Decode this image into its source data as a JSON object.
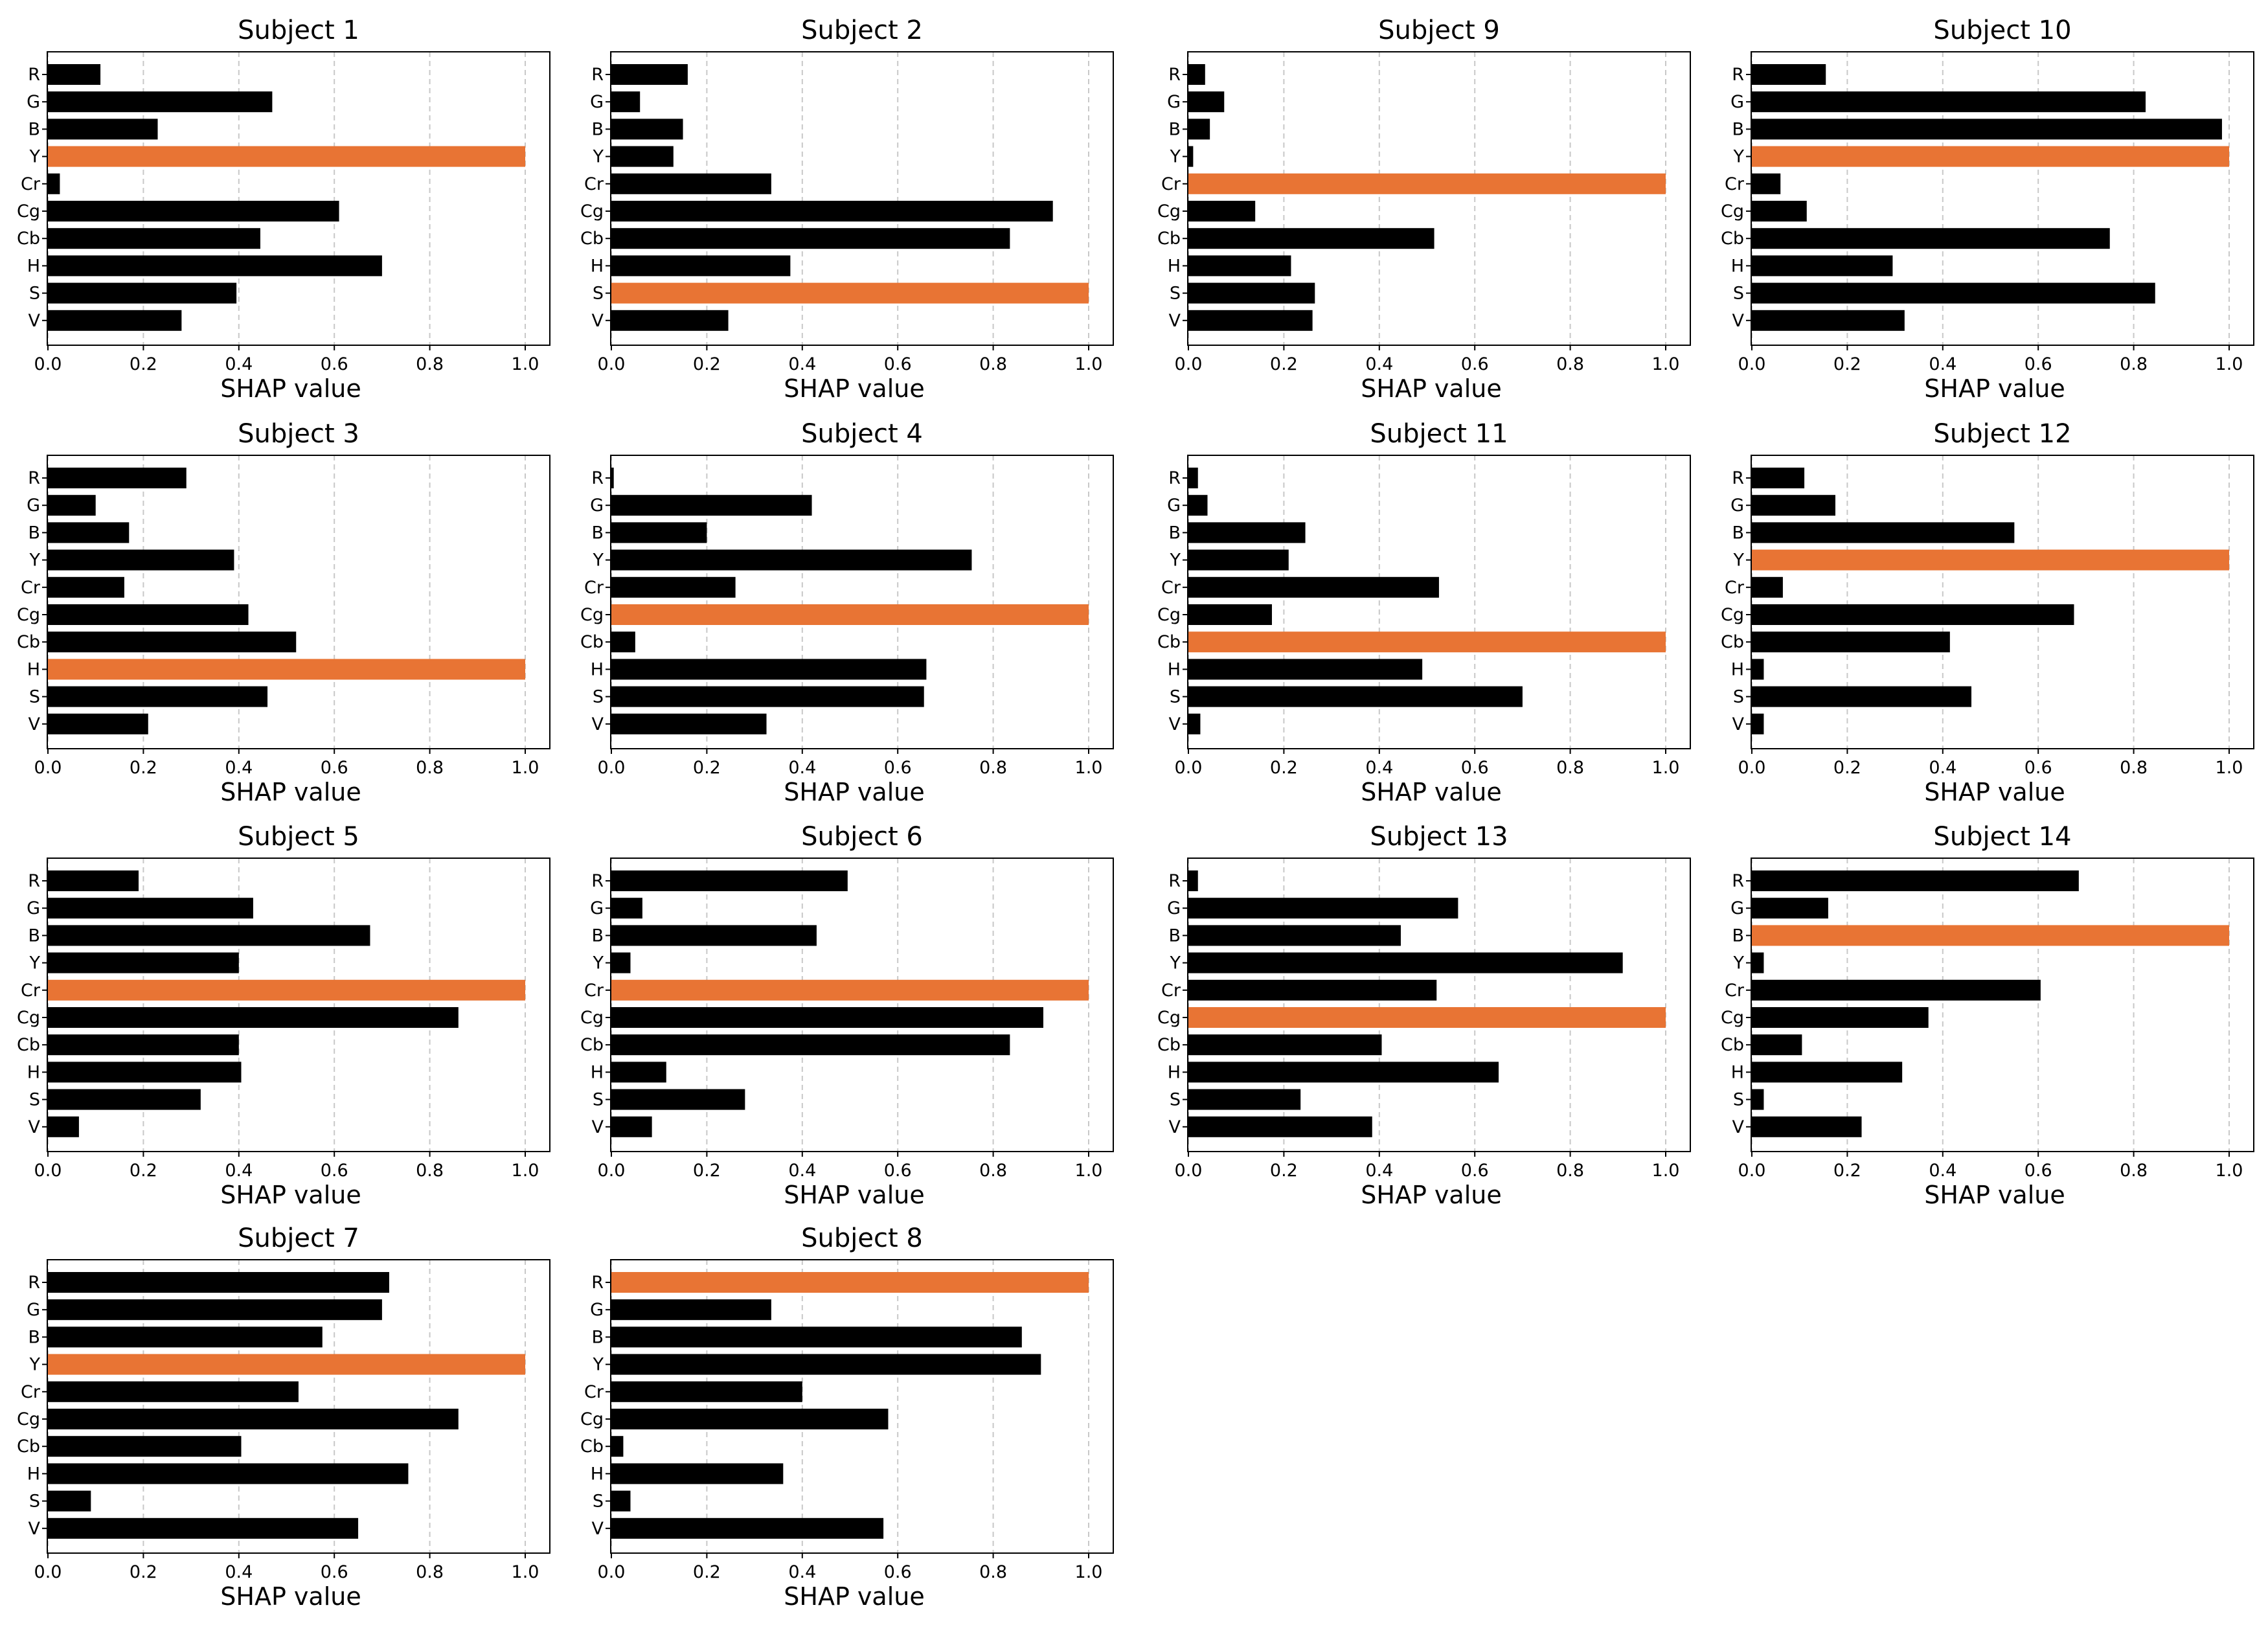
{
  "colors": {
    "bar": "#000000",
    "highlight": "#e87434",
    "grid": "#c8c8c8",
    "axis": "#000000"
  },
  "chart_data": [
    {
      "type": "bar",
      "orientation": "horizontal",
      "title": "Subject 1",
      "xlabel": "SHAP value",
      "categories": [
        "R",
        "G",
        "B",
        "Y",
        "Cr",
        "Cg",
        "Cb",
        "H",
        "S",
        "V"
      ],
      "values": [
        0.11,
        0.47,
        0.23,
        1.0,
        0.025,
        0.61,
        0.445,
        0.7,
        0.395,
        0.28
      ],
      "highlight": "Y",
      "xlim": [
        0,
        1.05
      ],
      "xticks": [
        "0.0",
        "0.2",
        "0.4",
        "0.6",
        "0.8",
        "1.0"
      ],
      "grid": "vertical dashed"
    },
    {
      "type": "bar",
      "orientation": "horizontal",
      "title": "Subject 2",
      "xlabel": "SHAP value",
      "categories": [
        "R",
        "G",
        "B",
        "Y",
        "Cr",
        "Cg",
        "Cb",
        "H",
        "S",
        "V"
      ],
      "values": [
        0.16,
        0.06,
        0.15,
        0.13,
        0.335,
        0.925,
        0.835,
        0.375,
        1.0,
        0.245
      ],
      "highlight": "S",
      "xlim": [
        0,
        1.05
      ],
      "xticks": [
        "0.0",
        "0.2",
        "0.4",
        "0.6",
        "0.8",
        "1.0"
      ],
      "grid": "vertical dashed"
    },
    {
      "type": "bar",
      "orientation": "horizontal",
      "title": "Subject 9",
      "xlabel": "SHAP value",
      "categories": [
        "R",
        "G",
        "B",
        "Y",
        "Cr",
        "Cg",
        "Cb",
        "H",
        "S",
        "V"
      ],
      "values": [
        0.035,
        0.075,
        0.045,
        0.01,
        1.0,
        0.14,
        0.515,
        0.215,
        0.265,
        0.26
      ],
      "highlight": "Cr",
      "xlim": [
        0,
        1.05
      ],
      "xticks": [
        "0.0",
        "0.2",
        "0.4",
        "0.6",
        "0.8",
        "1.0"
      ],
      "grid": "vertical dashed"
    },
    {
      "type": "bar",
      "orientation": "horizontal",
      "title": "Subject 10",
      "xlabel": "SHAP value",
      "categories": [
        "R",
        "G",
        "B",
        "Y",
        "Cr",
        "Cg",
        "Cb",
        "H",
        "S",
        "V"
      ],
      "values": [
        0.155,
        0.825,
        0.985,
        1.0,
        0.06,
        0.115,
        0.75,
        0.295,
        0.845,
        0.32
      ],
      "highlight": "Y",
      "xlim": [
        0,
        1.05
      ],
      "xticks": [
        "0.0",
        "0.2",
        "0.4",
        "0.6",
        "0.8",
        "1.0"
      ],
      "grid": "vertical dashed"
    },
    {
      "type": "bar",
      "orientation": "horizontal",
      "title": "Subject 3",
      "xlabel": "SHAP value",
      "categories": [
        "R",
        "G",
        "B",
        "Y",
        "Cr",
        "Cg",
        "Cb",
        "H",
        "S",
        "V"
      ],
      "values": [
        0.29,
        0.1,
        0.17,
        0.39,
        0.16,
        0.42,
        0.52,
        1.0,
        0.46,
        0.21
      ],
      "highlight": "H",
      "xlim": [
        0,
        1.05
      ],
      "xticks": [
        "0.0",
        "0.2",
        "0.4",
        "0.6",
        "0.8",
        "1.0"
      ],
      "grid": "vertical dashed"
    },
    {
      "type": "bar",
      "orientation": "horizontal",
      "title": "Subject 4",
      "xlabel": "SHAP value",
      "categories": [
        "R",
        "G",
        "B",
        "Y",
        "Cr",
        "Cg",
        "Cb",
        "H",
        "S",
        "V"
      ],
      "values": [
        0.005,
        0.42,
        0.2,
        0.755,
        0.26,
        1.0,
        0.05,
        0.66,
        0.655,
        0.325
      ],
      "highlight": "Cg",
      "xlim": [
        0,
        1.05
      ],
      "xticks": [
        "0.0",
        "0.2",
        "0.4",
        "0.6",
        "0.8",
        "1.0"
      ],
      "grid": "vertical dashed"
    },
    {
      "type": "bar",
      "orientation": "horizontal",
      "title": "Subject 11",
      "xlabel": "SHAP value",
      "categories": [
        "R",
        "G",
        "B",
        "Y",
        "Cr",
        "Cg",
        "Cb",
        "H",
        "S",
        "V"
      ],
      "values": [
        0.02,
        0.04,
        0.245,
        0.21,
        0.525,
        0.175,
        1.0,
        0.49,
        0.7,
        0.025
      ],
      "highlight": "Cb",
      "xlim": [
        0,
        1.05
      ],
      "xticks": [
        "0.0",
        "0.2",
        "0.4",
        "0.6",
        "0.8",
        "1.0"
      ],
      "grid": "vertical dashed"
    },
    {
      "type": "bar",
      "orientation": "horizontal",
      "title": "Subject 12",
      "xlabel": "SHAP value",
      "categories": [
        "R",
        "G",
        "B",
        "Y",
        "Cr",
        "Cg",
        "Cb",
        "H",
        "S",
        "V"
      ],
      "values": [
        0.11,
        0.175,
        0.55,
        1.0,
        0.065,
        0.675,
        0.415,
        0.025,
        0.46,
        0.025
      ],
      "highlight": "Y",
      "xlim": [
        0,
        1.05
      ],
      "xticks": [
        "0.0",
        "0.2",
        "0.4",
        "0.6",
        "0.8",
        "1.0"
      ],
      "grid": "vertical dashed"
    },
    {
      "type": "bar",
      "orientation": "horizontal",
      "title": "Subject 5",
      "xlabel": "SHAP value",
      "categories": [
        "R",
        "G",
        "B",
        "Y",
        "Cr",
        "Cg",
        "Cb",
        "H",
        "S",
        "V"
      ],
      "values": [
        0.19,
        0.43,
        0.675,
        0.4,
        1.0,
        0.86,
        0.4,
        0.405,
        0.32,
        0.065
      ],
      "highlight": "Cr",
      "xlim": [
        0,
        1.05
      ],
      "xticks": [
        "0.0",
        "0.2",
        "0.4",
        "0.6",
        "0.8",
        "1.0"
      ],
      "grid": "vertical dashed"
    },
    {
      "type": "bar",
      "orientation": "horizontal",
      "title": "Subject 6",
      "xlabel": "SHAP value",
      "categories": [
        "R",
        "G",
        "B",
        "Y",
        "Cr",
        "Cg",
        "Cb",
        "H",
        "S",
        "V"
      ],
      "values": [
        0.495,
        0.065,
        0.43,
        0.04,
        1.0,
        0.905,
        0.835,
        0.115,
        0.28,
        0.085
      ],
      "highlight": "Cr",
      "xlim": [
        0,
        1.05
      ],
      "xticks": [
        "0.0",
        "0.2",
        "0.4",
        "0.6",
        "0.8",
        "1.0"
      ],
      "grid": "vertical dashed"
    },
    {
      "type": "bar",
      "orientation": "horizontal",
      "title": "Subject 13",
      "xlabel": "SHAP value",
      "categories": [
        "R",
        "G",
        "B",
        "Y",
        "Cr",
        "Cg",
        "Cb",
        "H",
        "S",
        "V"
      ],
      "values": [
        0.02,
        0.565,
        0.445,
        0.91,
        0.52,
        1.0,
        0.405,
        0.65,
        0.235,
        0.385
      ],
      "highlight": "Cg",
      "xlim": [
        0,
        1.05
      ],
      "xticks": [
        "0.0",
        "0.2",
        "0.4",
        "0.6",
        "0.8",
        "1.0"
      ],
      "grid": "vertical dashed"
    },
    {
      "type": "bar",
      "orientation": "horizontal",
      "title": "Subject 14",
      "xlabel": "SHAP value",
      "categories": [
        "R",
        "G",
        "B",
        "Y",
        "Cr",
        "Cg",
        "Cb",
        "H",
        "S",
        "V"
      ],
      "values": [
        0.685,
        0.16,
        1.0,
        0.025,
        0.605,
        0.37,
        0.105,
        0.315,
        0.025,
        0.23
      ],
      "highlight": "B",
      "xlim": [
        0,
        1.05
      ],
      "xticks": [
        "0.0",
        "0.2",
        "0.4",
        "0.6",
        "0.8",
        "1.0"
      ],
      "grid": "vertical dashed"
    },
    {
      "type": "bar",
      "orientation": "horizontal",
      "title": "Subject 7",
      "xlabel": "SHAP value",
      "categories": [
        "R",
        "G",
        "B",
        "Y",
        "Cr",
        "Cg",
        "Cb",
        "H",
        "S",
        "V"
      ],
      "values": [
        0.715,
        0.7,
        0.575,
        1.0,
        0.525,
        0.86,
        0.405,
        0.755,
        0.09,
        0.65
      ],
      "highlight": "Y",
      "xlim": [
        0,
        1.05
      ],
      "xticks": [
        "0.0",
        "0.2",
        "0.4",
        "0.6",
        "0.8",
        "1.0"
      ],
      "grid": "vertical dashed"
    },
    {
      "type": "bar",
      "orientation": "horizontal",
      "title": "Subject 8",
      "xlabel": "SHAP value",
      "categories": [
        "R",
        "G",
        "B",
        "Y",
        "Cr",
        "Cg",
        "Cb",
        "H",
        "S",
        "V"
      ],
      "values": [
        1.0,
        0.335,
        0.86,
        0.9,
        0.4,
        0.58,
        0.025,
        0.36,
        0.04,
        0.57
      ],
      "highlight": "R",
      "xlim": [
        0,
        1.05
      ],
      "xticks": [
        "0.0",
        "0.2",
        "0.4",
        "0.6",
        "0.8",
        "1.0"
      ],
      "grid": "vertical dashed"
    }
  ]
}
